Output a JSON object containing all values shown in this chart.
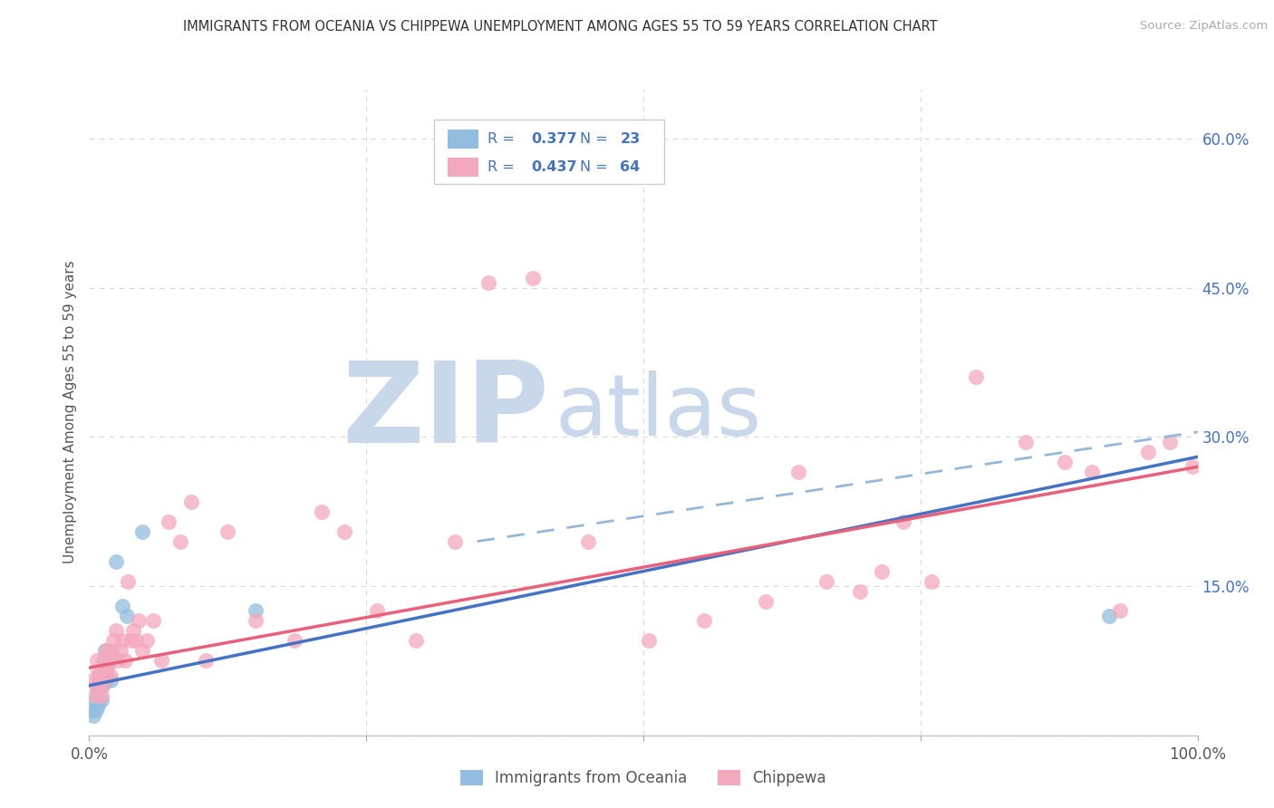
{
  "title": "IMMIGRANTS FROM OCEANIA VS CHIPPEWA UNEMPLOYMENT AMONG AGES 55 TO 59 YEARS CORRELATION CHART",
  "source": "Source: ZipAtlas.com",
  "ylabel": "Unemployment Among Ages 55 to 59 years",
  "xlim": [
    0,
    1.0
  ],
  "ylim": [
    0,
    0.65
  ],
  "xtick_positions": [
    0.0,
    0.25,
    0.5,
    0.75,
    1.0
  ],
  "xtick_labels": [
    "0.0%",
    "",
    "",
    "",
    "100.0%"
  ],
  "ytick_positions": [
    0.0,
    0.15,
    0.3,
    0.45,
    0.6
  ],
  "ytick_labels": [
    "",
    "15.0%",
    "30.0%",
    "45.0%",
    "60.0%"
  ],
  "bg_color": "#ffffff",
  "watermark_ZIP": "ZIP",
  "watermark_atlas": "atlas",
  "watermark_ZIP_color": "#c8d8ea",
  "watermark_atlas_color": "#c8d8ea",
  "series1_name": "Immigrants from Oceania",
  "series2_name": "Chippewa",
  "series1_scatter_color": "#92bde0",
  "series2_scatter_color": "#f4a8bc",
  "series1_line_color": "#4472c4",
  "series2_line_color": "#e8607a",
  "dashed_line_color": "#95b8d8",
  "grid_color": "#d8d8d8",
  "right_axis_color": "#4472c4",
  "legend_text_color": "#4472c4",
  "legend_R1": "0.377",
  "legend_N1": "23",
  "legend_R2": "0.437",
  "legend_N2": "64",
  "oceania_x": [
    0.002,
    0.004,
    0.005,
    0.006,
    0.007,
    0.008,
    0.009,
    0.01,
    0.011,
    0.012,
    0.013,
    0.014,
    0.015,
    0.016,
    0.018,
    0.019,
    0.021,
    0.024,
    0.03,
    0.034,
    0.048,
    0.15,
    0.92
  ],
  "oceania_y": [
    0.025,
    0.02,
    0.035,
    0.025,
    0.045,
    0.03,
    0.055,
    0.06,
    0.035,
    0.05,
    0.075,
    0.085,
    0.055,
    0.07,
    0.075,
    0.055,
    0.08,
    0.175,
    0.13,
    0.12,
    0.205,
    0.125,
    0.12
  ],
  "chippewa_x": [
    0.003,
    0.005,
    0.006,
    0.007,
    0.008,
    0.009,
    0.01,
    0.011,
    0.012,
    0.013,
    0.014,
    0.015,
    0.016,
    0.017,
    0.018,
    0.019,
    0.02,
    0.022,
    0.024,
    0.026,
    0.028,
    0.03,
    0.032,
    0.035,
    0.038,
    0.04,
    0.042,
    0.045,
    0.048,
    0.052,
    0.058,
    0.065,
    0.072,
    0.082,
    0.092,
    0.105,
    0.125,
    0.15,
    0.185,
    0.21,
    0.23,
    0.26,
    0.295,
    0.33,
    0.36,
    0.4,
    0.45,
    0.505,
    0.555,
    0.61,
    0.64,
    0.665,
    0.695,
    0.715,
    0.735,
    0.76,
    0.8,
    0.845,
    0.88,
    0.905,
    0.93,
    0.955,
    0.975,
    0.995
  ],
  "chippewa_y": [
    0.055,
    0.04,
    0.05,
    0.075,
    0.065,
    0.06,
    0.055,
    0.04,
    0.05,
    0.06,
    0.075,
    0.085,
    0.06,
    0.07,
    0.075,
    0.06,
    0.085,
    0.095,
    0.105,
    0.075,
    0.085,
    0.095,
    0.075,
    0.155,
    0.095,
    0.105,
    0.095,
    0.115,
    0.085,
    0.095,
    0.115,
    0.075,
    0.215,
    0.195,
    0.235,
    0.075,
    0.205,
    0.115,
    0.095,
    0.225,
    0.205,
    0.125,
    0.095,
    0.195,
    0.455,
    0.46,
    0.195,
    0.095,
    0.115,
    0.135,
    0.265,
    0.155,
    0.145,
    0.165,
    0.215,
    0.155,
    0.36,
    0.295,
    0.275,
    0.265,
    0.125,
    0.285,
    0.295,
    0.27
  ],
  "oceania_trend": [
    0.0,
    1.0,
    0.05,
    0.28
  ],
  "chippewa_trend": [
    0.0,
    1.0,
    0.068,
    0.27
  ],
  "dashed_trend": [
    0.35,
    1.0,
    0.195,
    0.305
  ]
}
